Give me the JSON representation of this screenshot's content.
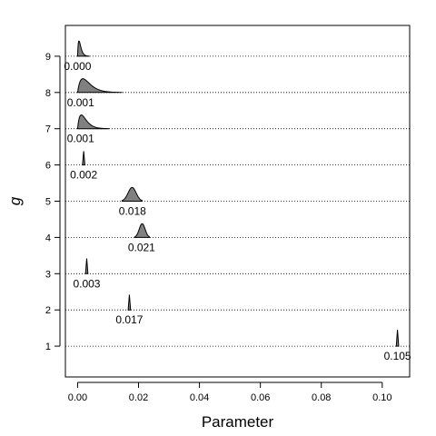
{
  "chart_data": {
    "type": "ridgeline",
    "xlabel": "Parameter",
    "ylabel": "g",
    "xlim": [
      -0.004,
      0.109
    ],
    "ylim": [
      0.15,
      9.85
    ],
    "x_ticks": [
      0.0,
      0.02,
      0.04,
      0.06,
      0.08,
      0.1
    ],
    "x_tick_labels": [
      "0.00",
      "0.02",
      "0.04",
      "0.06",
      "0.08",
      "0.10"
    ],
    "y_ticks": [
      1,
      2,
      3,
      4,
      5,
      6,
      7,
      8,
      9
    ],
    "y_tick_labels": [
      "1",
      "2",
      "3",
      "4",
      "5",
      "6",
      "7",
      "8",
      "9"
    ],
    "grid": "horizontal dotted at each group",
    "fill_color": "#808080",
    "groups": [
      {
        "g": 1,
        "estimate": 0.105,
        "label": "0.105",
        "x_min": 0.1046,
        "x_max": 0.1054,
        "peak_height": 0.45,
        "shape": "spike"
      },
      {
        "g": 2,
        "estimate": 0.017,
        "label": "0.017",
        "x_min": 0.0166,
        "x_max": 0.0174,
        "peak_height": 0.42,
        "shape": "spike"
      },
      {
        "g": 3,
        "estimate": 0.003,
        "label": "0.003",
        "x_min": 0.0026,
        "x_max": 0.0034,
        "peak_height": 0.42,
        "shape": "spike"
      },
      {
        "g": 4,
        "estimate": 0.021,
        "label": "0.021",
        "x_min": 0.0188,
        "x_max": 0.0236,
        "peak_height": 0.38,
        "shape": "bell"
      },
      {
        "g": 5,
        "estimate": 0.018,
        "label": "0.018",
        "x_min": 0.0146,
        "x_max": 0.0212,
        "peak_height": 0.38,
        "shape": "bell"
      },
      {
        "g": 6,
        "estimate": 0.002,
        "label": "0.002",
        "x_min": 0.0016,
        "x_max": 0.0024,
        "peak_height": 0.38,
        "shape": "spike"
      },
      {
        "g": 7,
        "estimate": 0.001,
        "label": "0.001",
        "x_min": 0.0,
        "x_max": 0.0102,
        "peak_height": 0.38,
        "shape": "skewed"
      },
      {
        "g": 8,
        "estimate": 0.001,
        "label": "0.001",
        "x_min": 0.0,
        "x_max": 0.0145,
        "peak_height": 0.38,
        "shape": "skewed"
      },
      {
        "g": 9,
        "estimate": 0.0,
        "label": "0.000",
        "x_min": 0.0,
        "x_max": 0.0038,
        "peak_height": 0.42,
        "shape": "skewed"
      }
    ]
  }
}
